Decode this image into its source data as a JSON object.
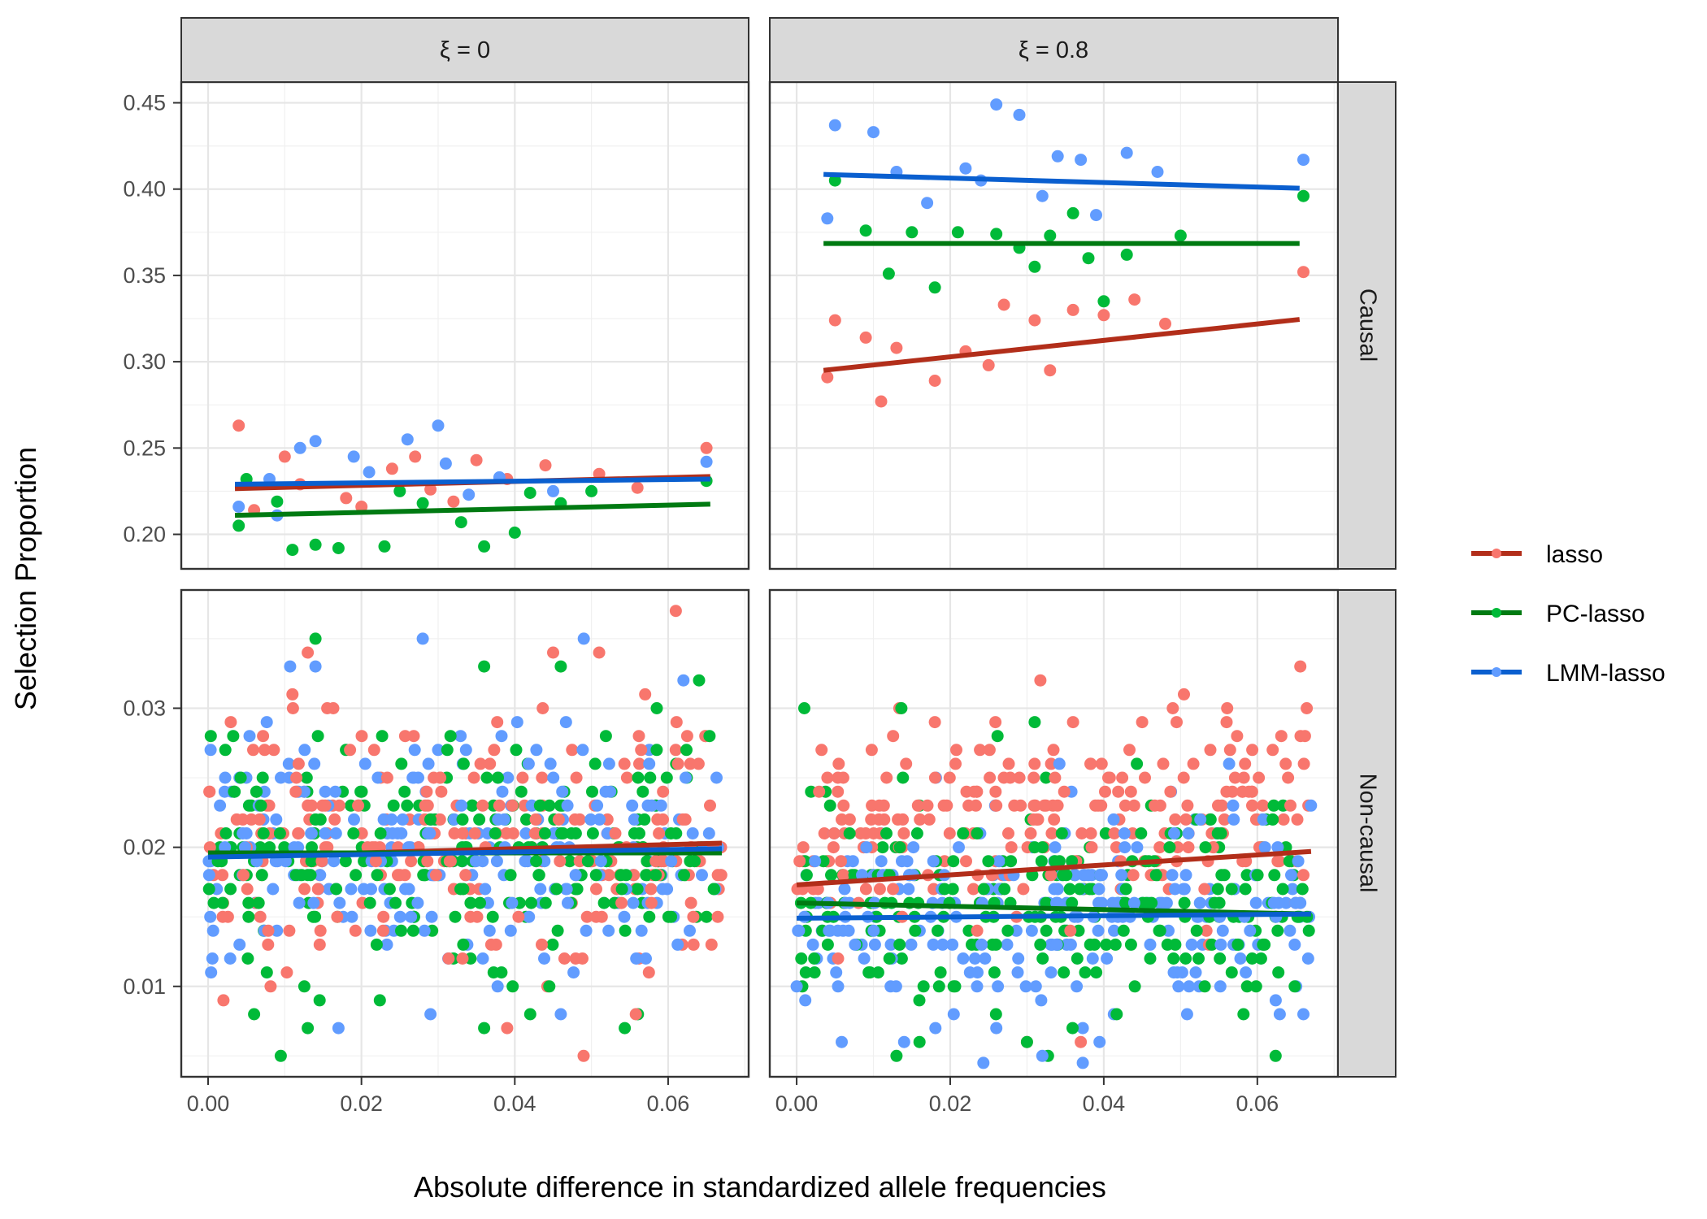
{
  "chart_data": {
    "type": "scatter",
    "xlabel": "Absolute difference in standardized allele frequencies",
    "ylabel": "Selection Proportion",
    "x_ticks": [
      "0.00",
      "0.02",
      "0.04",
      "0.06"
    ],
    "x_tick_values": [
      0.0,
      0.02,
      0.04,
      0.06
    ],
    "xlim": [
      -0.0035,
      0.0705
    ],
    "grid": true,
    "legend_position": "right",
    "columns": [
      {
        "label": "ξ = 0",
        "xi": 0
      },
      {
        "label": "ξ = 0.8",
        "xi": 0.8
      }
    ],
    "rows": [
      {
        "label": "Causal",
        "ylim": [
          0.18,
          0.462
        ],
        "y_ticks": [
          "0.20",
          "0.25",
          "0.30",
          "0.35",
          "0.40",
          "0.45"
        ],
        "y_tick_values": [
          0.2,
          0.25,
          0.3,
          0.35,
          0.4,
          0.45
        ]
      },
      {
        "label": "Non-causal",
        "ylim": [
          0.0035,
          0.0385
        ],
        "y_ticks": [
          "0.01",
          "0.02",
          "0.03"
        ],
        "y_tick_values": [
          0.01,
          0.02,
          0.03
        ]
      }
    ],
    "series": [
      {
        "name": "lasso",
        "point_color": "#F8766D",
        "line_color": "#b22e1a"
      },
      {
        "name": "PC-lasso",
        "point_color": "#00BA38",
        "line_color": "#007a12"
      },
      {
        "name": "LMM-lasso",
        "point_color": "#619CFF",
        "line_color": "#0a5fcf"
      }
    ],
    "panels": [
      {
        "row": "Causal",
        "column": "ξ = 0",
        "x_range": [
          0.0035,
          0.0655
        ],
        "noise": 0.009,
        "fits": {
          "lasso": [
            0.2265,
            0.2335
          ],
          "PC-lasso": [
            0.211,
            0.2175
          ],
          "LMM-lasso": [
            0.229,
            0.232
          ]
        },
        "points": {
          "lasso": [
            [
              0.004,
              0.263
            ],
            [
              0.012,
              0.229
            ],
            [
              0.018,
              0.221
            ],
            [
              0.024,
              0.238
            ],
            [
              0.029,
              0.226
            ],
            [
              0.032,
              0.219
            ],
            [
              0.035,
              0.243
            ],
            [
              0.039,
              0.232
            ],
            [
              0.044,
              0.24
            ],
            [
              0.051,
              0.235
            ],
            [
              0.056,
              0.227
            ],
            [
              0.065,
              0.25
            ],
            [
              0.006,
              0.214
            ],
            [
              0.01,
              0.245
            ],
            [
              0.02,
              0.216
            ],
            [
              0.027,
              0.245
            ]
          ],
          "PC-lasso": [
            [
              0.005,
              0.232
            ],
            [
              0.011,
              0.191
            ],
            [
              0.014,
              0.194
            ],
            [
              0.017,
              0.192
            ],
            [
              0.023,
              0.193
            ],
            [
              0.028,
              0.218
            ],
            [
              0.033,
              0.207
            ],
            [
              0.036,
              0.193
            ],
            [
              0.04,
              0.201
            ],
            [
              0.046,
              0.218
            ],
            [
              0.05,
              0.225
            ],
            [
              0.065,
              0.231
            ],
            [
              0.004,
              0.205
            ],
            [
              0.009,
              0.219
            ],
            [
              0.025,
              0.225
            ],
            [
              0.042,
              0.224
            ]
          ],
          "LMM-lasso": [
            [
              0.004,
              0.216
            ],
            [
              0.008,
              0.232
            ],
            [
              0.012,
              0.25
            ],
            [
              0.014,
              0.254
            ],
            [
              0.019,
              0.245
            ],
            [
              0.026,
              0.255
            ],
            [
              0.03,
              0.263
            ],
            [
              0.034,
              0.223
            ],
            [
              0.038,
              0.233
            ],
            [
              0.045,
              0.225
            ],
            [
              0.065,
              0.242
            ],
            [
              0.009,
              0.211
            ],
            [
              0.021,
              0.236
            ],
            [
              0.031,
              0.241
            ]
          ]
        }
      },
      {
        "row": "Causal",
        "column": "ξ = 0.8",
        "x_range": [
          0.0035,
          0.0655
        ],
        "noise": 0.018,
        "fits": {
          "lasso": [
            0.295,
            0.3245
          ],
          "PC-lasso": [
            0.3685,
            0.3685
          ],
          "LMM-lasso": [
            0.4085,
            0.4005
          ]
        },
        "points": {
          "lasso": [
            [
              0.004,
              0.291
            ],
            [
              0.005,
              0.324
            ],
            [
              0.009,
              0.314
            ],
            [
              0.011,
              0.277
            ],
            [
              0.013,
              0.308
            ],
            [
              0.018,
              0.289
            ],
            [
              0.022,
              0.306
            ],
            [
              0.027,
              0.333
            ],
            [
              0.031,
              0.324
            ],
            [
              0.033,
              0.295
            ],
            [
              0.036,
              0.33
            ],
            [
              0.04,
              0.327
            ],
            [
              0.044,
              0.336
            ],
            [
              0.048,
              0.322
            ],
            [
              0.066,
              0.352
            ],
            [
              0.025,
              0.298
            ]
          ],
          "PC-lasso": [
            [
              0.005,
              0.405
            ],
            [
              0.009,
              0.376
            ],
            [
              0.012,
              0.351
            ],
            [
              0.015,
              0.375
            ],
            [
              0.018,
              0.343
            ],
            [
              0.021,
              0.375
            ],
            [
              0.026,
              0.374
            ],
            [
              0.029,
              0.366
            ],
            [
              0.033,
              0.373
            ],
            [
              0.036,
              0.386
            ],
            [
              0.04,
              0.335
            ],
            [
              0.043,
              0.362
            ],
            [
              0.05,
              0.373
            ],
            [
              0.066,
              0.396
            ],
            [
              0.031,
              0.355
            ],
            [
              0.038,
              0.36
            ]
          ],
          "LMM-lasso": [
            [
              0.004,
              0.383
            ],
            [
              0.005,
              0.437
            ],
            [
              0.01,
              0.433
            ],
            [
              0.013,
              0.41
            ],
            [
              0.017,
              0.392
            ],
            [
              0.022,
              0.412
            ],
            [
              0.026,
              0.449
            ],
            [
              0.029,
              0.443
            ],
            [
              0.032,
              0.396
            ],
            [
              0.034,
              0.419
            ],
            [
              0.037,
              0.417
            ],
            [
              0.043,
              0.421
            ],
            [
              0.047,
              0.41
            ],
            [
              0.066,
              0.417
            ],
            [
              0.039,
              0.385
            ],
            [
              0.024,
              0.405
            ]
          ]
        }
      },
      {
        "row": "Non-causal",
        "column": "ξ = 0",
        "x_range": [
          0.0,
          0.067
        ],
        "noise": 0.005,
        "random_points": 240,
        "fits": {
          "lasso": [
            0.0193,
            0.0203
          ],
          "PC-lasso": [
            0.0196,
            0.0196
          ],
          "LMM-lasso": [
            0.0193,
            0.0199
          ]
        },
        "points": {
          "lasso": [
            [
              0.061,
              0.037
            ],
            [
              0.013,
              0.034
            ],
            [
              0.045,
              0.034
            ],
            [
              0.051,
              0.034
            ],
            [
              0.011,
              0.031
            ],
            [
              0.057,
              0.031
            ],
            [
              0.002,
              0.009
            ],
            [
              0.039,
              0.007
            ]
          ],
          "PC-lasso": [
            [
              0.014,
              0.035
            ],
            [
              0.036,
              0.033
            ],
            [
              0.046,
              0.033
            ],
            [
              0.006,
              0.008
            ],
            [
              0.013,
              0.007
            ],
            [
              0.036,
              0.007
            ],
            [
              0.066,
              0.017
            ]
          ],
          "LMM-lasso": [
            [
              0.028,
              0.035
            ],
            [
              0.049,
              0.035
            ],
            [
              0.014,
              0.033
            ],
            [
              0.062,
              0.032
            ],
            [
              0.017,
              0.007
            ],
            [
              0.029,
              0.008
            ],
            [
              0.046,
              0.008
            ]
          ]
        }
      },
      {
        "row": "Non-causal",
        "column": "ξ = 0.8",
        "x_range": [
          0.0,
          0.067
        ],
        "noise": 0.0045,
        "random_points": 240,
        "fits": {
          "lasso": [
            0.0173,
            0.0197
          ],
          "PC-lasso": [
            0.016,
            0.0152
          ],
          "LMM-lasso": [
            0.0149,
            0.0152
          ]
        },
        "points": {
          "lasso": [
            [
              0.018,
              0.029
            ],
            [
              0.045,
              0.029
            ],
            [
              0.056,
              0.029
            ],
            [
              0.036,
              0.029
            ],
            [
              0.064,
              0.025
            ],
            [
              0.03,
              0.006
            ],
            [
              0.037,
              0.006
            ],
            [
              0.066,
              0.018
            ]
          ],
          "PC-lasso": [
            [
              0.001,
              0.03
            ],
            [
              0.031,
              0.029
            ],
            [
              0.013,
              0.005
            ],
            [
              0.016,
              0.006
            ],
            [
              0.03,
              0.006
            ],
            [
              0.062,
              0.022
            ]
          ],
          "LMM-lasso": [
            [
              0.032,
              0.005
            ],
            [
              0.014,
              0.006
            ],
            [
              0.066,
              0.008
            ],
            [
              0.026,
              0.007
            ],
            [
              0.0,
              0.01
            ]
          ]
        }
      }
    ]
  }
}
